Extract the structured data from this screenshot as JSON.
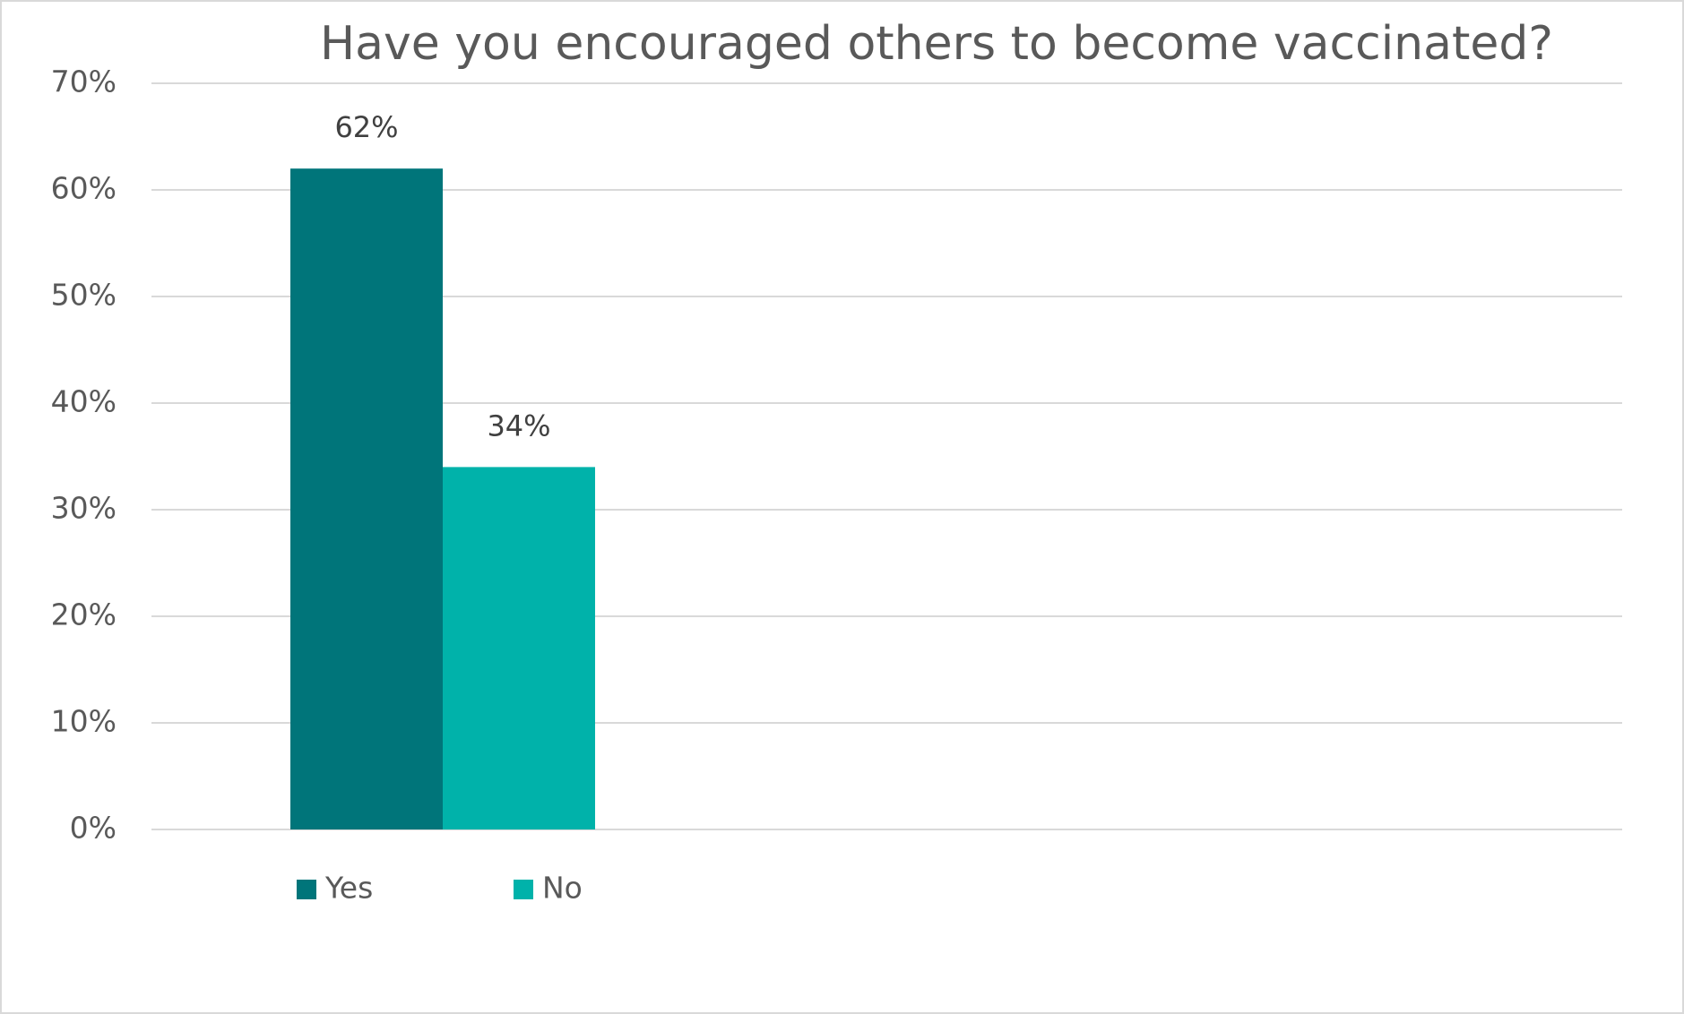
{
  "chart_data": {
    "type": "bar",
    "title": "Have you encouraged others to become vaccinated?",
    "categories": [
      null
    ],
    "series": [
      {
        "name": "Yes",
        "color": "#00757a",
        "values": [
          62
        ],
        "value_labels": [
          "62%"
        ]
      },
      {
        "name": "No",
        "color": "#00b2aa",
        "values": [
          34
        ],
        "value_labels": [
          "34%"
        ]
      }
    ],
    "ylim": [
      0,
      70
    ],
    "yticks": [
      {
        "value": 0,
        "label": "0%"
      },
      {
        "value": 10,
        "label": "10%"
      },
      {
        "value": 20,
        "label": "20%"
      },
      {
        "value": 30,
        "label": "30%"
      },
      {
        "value": 40,
        "label": "40%"
      },
      {
        "value": 50,
        "label": "50%"
      },
      {
        "value": 60,
        "label": "60%"
      },
      {
        "value": 70,
        "label": "70%"
      }
    ],
    "grid": true,
    "legend": "bottom"
  }
}
